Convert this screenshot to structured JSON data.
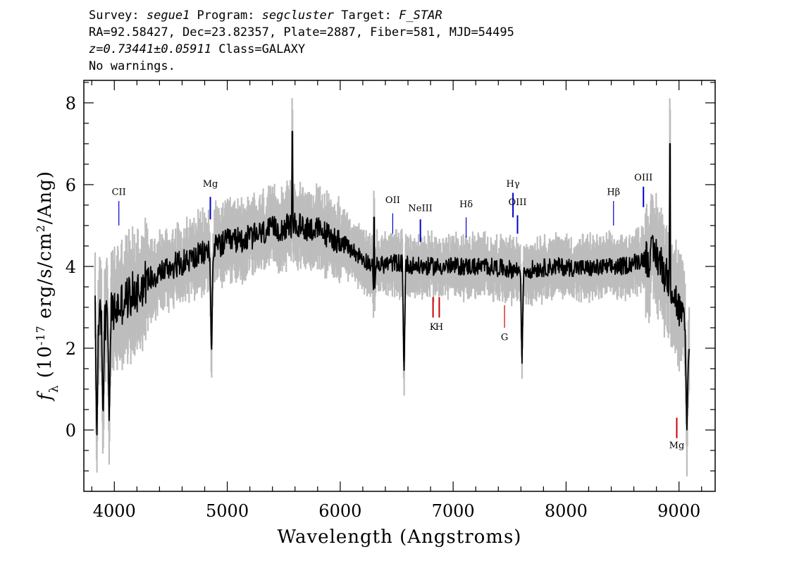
{
  "header": {
    "survey_label": "Survey: ",
    "survey": "segue1",
    "program_label": " Program: ",
    "program": "segcluster",
    "target_label": " Target: ",
    "target": "F_STAR",
    "line2": "RA=92.58427, Dec=23.82357, Plate=2887, Fiber=581, MJD=54495",
    "z": "z=0.73441±0.05911",
    "class": " Class=GALAXY",
    "warnings": "No warnings."
  },
  "chart_data": {
    "type": "line",
    "xlabel": "Wavelength (Angstroms)",
    "ylabel": "f_λ (10^-17 erg/s/cm^2/Ang)",
    "xlim": [
      3730,
      9320
    ],
    "ylim": [
      -1.5,
      8.55
    ],
    "x_ticks": [
      4000,
      5000,
      6000,
      7000,
      8000,
      9000
    ],
    "y_ticks": [
      0,
      2,
      4,
      6,
      8
    ],
    "grid": false,
    "colors": {
      "spectrum": "#000000",
      "error_band": "#bdbdbd",
      "emission_lines": "#0000cc",
      "absorption_lines": "#cc0000"
    },
    "continuum_nodes": {
      "x": [
        3830,
        3900,
        4000,
        4100,
        4200,
        4300,
        4500,
        4700,
        4850,
        5000,
        5200,
        5400,
        5600,
        5800,
        6000,
        6200,
        6300,
        6500,
        6700,
        7000,
        7300,
        7600,
        7900,
        8200,
        8500,
        8800,
        8950,
        9050,
        9090
      ],
      "y": [
        2.8,
        2.6,
        2.9,
        3.2,
        3.4,
        3.7,
        4.0,
        4.2,
        4.4,
        4.6,
        4.7,
        4.9,
        5.0,
        4.9,
        4.6,
        4.2,
        4.0,
        4.1,
        4.0,
        4.0,
        4.0,
        3.9,
        4.0,
        3.95,
        4.0,
        4.3,
        3.4,
        2.5,
        1.5
      ]
    },
    "absorption_features": [
      {
        "x": 3845,
        "y": -0.4
      },
      {
        "x": 3900,
        "y": 0.2
      },
      {
        "x": 3955,
        "y": 0.1
      },
      {
        "x": 4860,
        "y": 1.6
      },
      {
        "x": 6300,
        "y": 2.9
      },
      {
        "x": 6565,
        "y": 1.3
      },
      {
        "x": 7610,
        "y": 1.7
      },
      {
        "x": 9070,
        "y": 0.1
      }
    ],
    "emission_spikes": [
      {
        "x": 5577,
        "y": 7.3
      },
      {
        "x": 6300,
        "y": 5.2
      },
      {
        "x": 8920,
        "y": 7.0
      }
    ],
    "line_markers": [
      {
        "label": "CII",
        "x": 4040,
        "y_top": 5.6,
        "y_bottom": 5.0,
        "type": "emission",
        "label_y": 5.75
      },
      {
        "label": "Mg",
        "x": 4850,
        "y_top": 5.7,
        "y_bottom": 5.15,
        "type": "emission",
        "label_y": 5.95
      },
      {
        "label": "OII",
        "x": 6465,
        "y_top": 5.3,
        "y_bottom": 4.8,
        "type": "emission",
        "label_y": 5.55
      },
      {
        "label": "NeIII",
        "x": 6710,
        "y_top": 5.15,
        "y_bottom": 4.6,
        "type": "emission",
        "label_y": 5.35
      },
      {
        "label": "Hδ",
        "x": 7115,
        "y_top": 5.2,
        "y_bottom": 4.7,
        "type": "emission",
        "label_y": 5.45
      },
      {
        "label": "Hγ",
        "x": 7530,
        "y_top": 5.8,
        "y_bottom": 5.2,
        "type": "emission",
        "label_y": 5.95
      },
      {
        "label": "OIII",
        "x": 7570,
        "y_top": 5.25,
        "y_bottom": 4.8,
        "type": "emission",
        "label_y": 5.5
      },
      {
        "label": "Hβ",
        "x": 8420,
        "y_top": 5.6,
        "y_bottom": 5.0,
        "type": "emission",
        "label_y": 5.75
      },
      {
        "label": "OIII",
        "x": 8685,
        "y_top": 5.95,
        "y_bottom": 5.45,
        "type": "emission",
        "label_y": 6.1
      },
      {
        "label": "K",
        "x": 6822,
        "y_top": 3.25,
        "y_bottom": 2.75,
        "type": "absorption",
        "label_y": 2.45
      },
      {
        "label": "H",
        "x": 6877,
        "y_top": 3.25,
        "y_bottom": 2.75,
        "type": "absorption",
        "label_y": 2.45
      },
      {
        "label": "G",
        "x": 7455,
        "y_top": 3.05,
        "y_bottom": 2.5,
        "type": "absorption",
        "label_y": 2.2
      },
      {
        "label": "Mg",
        "x": 8980,
        "y_top": 0.3,
        "y_bottom": -0.2,
        "type": "absorption",
        "label_y": -0.45
      }
    ]
  }
}
